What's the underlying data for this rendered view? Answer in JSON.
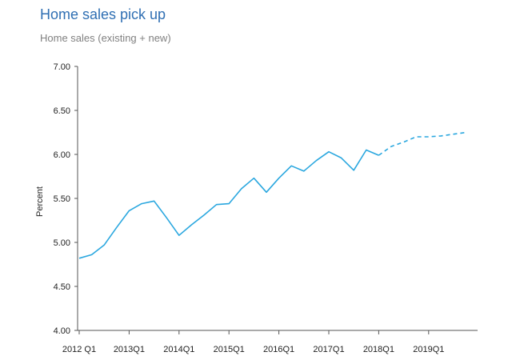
{
  "chart_data": {
    "type": "line",
    "title": "Home sales pick up",
    "subtitle": "Home sales (existing + new)",
    "xlabel": "",
    "ylabel": "Percent",
    "ylim": [
      4.0,
      7.0
    ],
    "yticks": [
      "4.00",
      "4.50",
      "5.00",
      "5.50",
      "6.00",
      "6.50",
      "7.00"
    ],
    "xticks": [
      "2012 Q1",
      "2013Q1",
      "2014Q1",
      "2015Q1",
      "2016Q1",
      "2017Q1",
      "2018Q1",
      "2019Q1"
    ],
    "grid": false,
    "line_color": "#2aa7df",
    "series": [
      {
        "style": "solid",
        "x": [
          "2012Q1",
          "2012Q2",
          "2012Q3",
          "2012Q4",
          "2013Q1",
          "2013Q2",
          "2013Q3",
          "2013Q4",
          "2014Q1",
          "2014Q2",
          "2014Q3",
          "2014Q4",
          "2015Q1",
          "2015Q2",
          "2015Q3",
          "2015Q4",
          "2016Q1",
          "2016Q2",
          "2016Q3",
          "2016Q4",
          "2017Q1",
          "2017Q2",
          "2017Q3",
          "2017Q4",
          "2018Q1"
        ],
        "values": [
          4.82,
          4.86,
          4.97,
          5.17,
          5.36,
          5.44,
          5.47,
          5.28,
          5.08,
          5.2,
          5.31,
          5.43,
          5.44,
          5.61,
          5.73,
          5.57,
          5.73,
          5.87,
          5.81,
          5.93,
          6.03,
          5.96,
          5.82,
          6.05,
          5.99
        ]
      },
      {
        "style": "dashed",
        "x": [
          "2018Q1",
          "2018Q2",
          "2018Q3",
          "2018Q4",
          "2019Q1",
          "2019Q2",
          "2019Q3",
          "2019Q4"
        ],
        "values": [
          5.99,
          6.09,
          6.14,
          6.2,
          6.2,
          6.21,
          6.23,
          6.25
        ]
      }
    ]
  }
}
